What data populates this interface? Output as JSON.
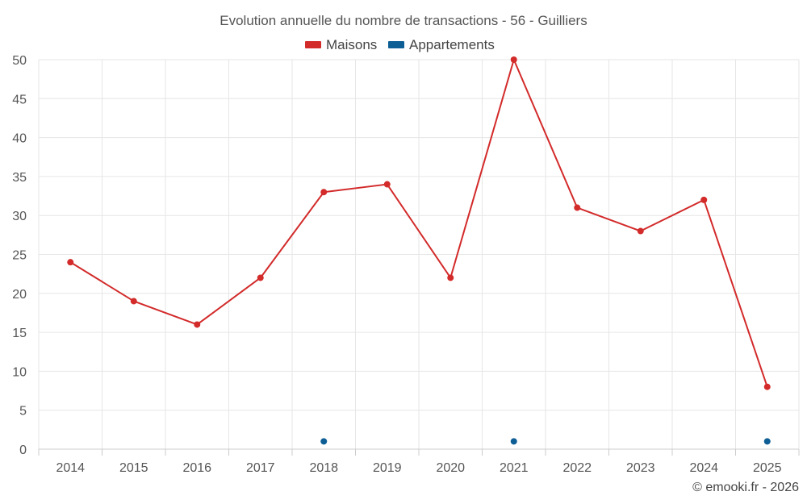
{
  "chart_data": {
    "type": "line",
    "title": "Evolution annuelle du nombre de transactions - 56 - Guilliers",
    "categories": [
      "2014",
      "2015",
      "2016",
      "2017",
      "2018",
      "2019",
      "2020",
      "2021",
      "2022",
      "2023",
      "2024",
      "2025"
    ],
    "series": [
      {
        "name": "Maisons",
        "color": "#d32a2a",
        "values": [
          24,
          19,
          16,
          22,
          33,
          34,
          22,
          50,
          31,
          28,
          32,
          8
        ],
        "connected": true
      },
      {
        "name": "Appartements",
        "color": "#0e5e96",
        "values": [
          null,
          null,
          null,
          null,
          1,
          null,
          null,
          1,
          null,
          null,
          null,
          1
        ],
        "connected": false
      }
    ],
    "ylim": [
      0,
      50
    ],
    "yticks": [
      0,
      5,
      10,
      15,
      20,
      25,
      30,
      35,
      40,
      45,
      50
    ],
    "grid": true,
    "legend": "top-center",
    "credit": "© emooki.fr - 2026"
  }
}
